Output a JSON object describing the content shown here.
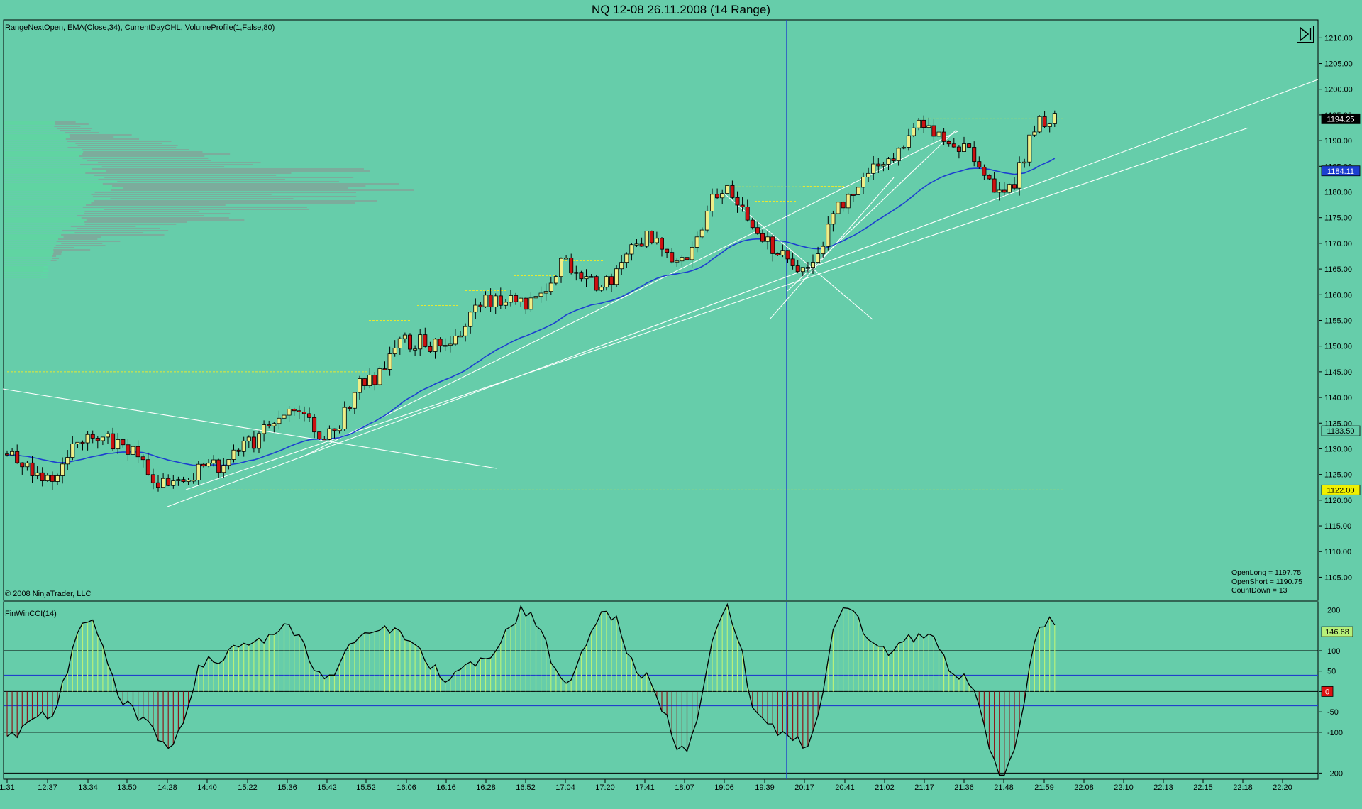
{
  "window": {
    "title": "NQ 12-08  26.11.2008 (14 Range)",
    "indicators": "RangeNextOpen, EMA(Close,34), CurrentDayOHL, VolumeProfile(1,False,80)",
    "copyright": "© 2008 NinjaTrader, LLC",
    "nav_icon": "skip-to-end-icon"
  },
  "stats": {
    "open_long": "OpenLong = 1197.75",
    "open_short": "OpenShort = 1190.75",
    "countdown": "CountDown = 13"
  },
  "colors": {
    "background": "#66CDAA",
    "bull_candle": "#EEEE88",
    "bear_candle": "#CC1111",
    "ema": "#1C3FD0",
    "trendline": "#FFFFFF",
    "level_line": "#E8E830",
    "volume_profile": "#8F8F8F",
    "cci_line": "#000000",
    "cci_pos_hist": "#B7F07A",
    "cci_neg_hist": "#8B1A1A",
    "cursor_line": "#2040CC"
  },
  "chart_data": [
    {
      "type": "candlestick",
      "instrument": "NQ 12-08",
      "ylim": [
        1100.5,
        1213.5
      ],
      "y_ticks": [
        1105,
        1110,
        1115,
        1120,
        1125,
        1130,
        1135,
        1140,
        1145,
        1150,
        1155,
        1160,
        1165,
        1170,
        1175,
        1180,
        1185,
        1190,
        1195,
        1200,
        1205,
        1210
      ],
      "y_tick_labels": [
        "1105.00",
        "1110.00",
        "1115.00",
        "1120.00",
        "1125.00",
        "1130.00",
        "1135.00",
        "1140.00",
        "1145.00",
        "1150.00",
        "1155.00",
        "1160.00",
        "1165.00",
        "1170.00",
        "1175.00",
        "1180.00",
        "1185.00",
        "1190.00",
        "1195.00",
        "1200.00",
        "1205.00",
        "1210.00"
      ],
      "x_tick_labels": [
        "1:31",
        "12:37",
        "13:34",
        "13:50",
        "14:28",
        "14:40",
        "15:22",
        "15:36",
        "15:42",
        "15:52",
        "16:06",
        "16:16",
        "16:28",
        "16:52",
        "17:04",
        "17:20",
        "17:41",
        "18:07",
        "19:06",
        "19:39",
        "20:17",
        "20:41",
        "21:02",
        "21:17",
        "21:36",
        "21:48",
        "21:59",
        "22:08",
        "22:10",
        "22:13",
        "22:15",
        "22:18",
        "22:20"
      ],
      "key_points": [
        {
          "time": "1:31",
          "price": 1129
        },
        {
          "time": "12:37",
          "price": 1124
        },
        {
          "time": "13:34",
          "price": 1133
        },
        {
          "time": "13:50",
          "price": 1130
        },
        {
          "time": "14:28",
          "price": 1123
        },
        {
          "time": "14:40",
          "price": 1126
        },
        {
          "time": "15:22",
          "price": 1131
        },
        {
          "time": "15:36",
          "price": 1138
        },
        {
          "time": "15:42",
          "price": 1133
        },
        {
          "time": "15:52",
          "price": 1143
        },
        {
          "time": "16:06",
          "price": 1151
        },
        {
          "time": "16:16",
          "price": 1150
        },
        {
          "time": "16:28",
          "price": 1159
        },
        {
          "time": "16:52",
          "price": 1158
        },
        {
          "time": "17:04",
          "price": 1166
        },
        {
          "time": "17:20",
          "price": 1162
        },
        {
          "time": "17:41",
          "price": 1171
        },
        {
          "time": "18:07",
          "price": 1167
        },
        {
          "time": "19:06",
          "price": 1181
        },
        {
          "time": "19:39",
          "price": 1170
        },
        {
          "time": "20:17",
          "price": 1164
        },
        {
          "time": "20:41",
          "price": 1178
        },
        {
          "time": "21:02",
          "price": 1186
        },
        {
          "time": "21:17",
          "price": 1193
        },
        {
          "time": "21:36",
          "price": 1188
        },
        {
          "time": "21:48",
          "price": 1180
        },
        {
          "time": "21:59",
          "price": 1194
        }
      ],
      "last_price": 1194.25,
      "price_markers": [
        {
          "label": "1194.25",
          "value": 1194.25,
          "bg": "#000000",
          "fg": "#FFFFFF"
        },
        {
          "label": "1184.11",
          "value": 1184.11,
          "bg": "#1C3FD0",
          "fg": "#FFFFFF"
        },
        {
          "label": "1133.50",
          "value": 1133.5,
          "bg": "#66CDAA",
          "fg": "#000000"
        },
        {
          "label": "1122.00",
          "value": 1122.0,
          "bg": "#F0F000",
          "fg": "#000000"
        }
      ],
      "levels": [
        {
          "name": "current-day-low",
          "value": 1122.0
        },
        {
          "name": "current-day-high",
          "value": 1194.25
        }
      ],
      "series": [
        {
          "name": "EMA(Close,34)"
        }
      ]
    },
    {
      "type": "line",
      "name": "FinWinCCI(14)",
      "ylim": [
        -215,
        220
      ],
      "y_ticks": [
        200,
        100,
        50,
        0,
        -50,
        -100,
        -200
      ],
      "y_tick_labels": [
        "200",
        "100",
        "50",
        "0",
        "-50",
        "-100",
        "-200"
      ],
      "hlines": [
        200,
        100,
        0,
        -100,
        -200
      ],
      "blue_hlines": [
        40,
        -35
      ],
      "key_points": [
        {
          "time": "1:31",
          "value": -120
        },
        {
          "time": "12:37",
          "value": -60
        },
        {
          "time": "13:34",
          "value": 180
        },
        {
          "time": "13:50",
          "value": -40
        },
        {
          "time": "14:28",
          "value": -130
        },
        {
          "time": "14:40",
          "value": 70
        },
        {
          "time": "15:22",
          "value": 120
        },
        {
          "time": "15:36",
          "value": 150
        },
        {
          "time": "15:42",
          "value": 30
        },
        {
          "time": "15:52",
          "value": 150
        },
        {
          "time": "16:06",
          "value": 140
        },
        {
          "time": "16:16",
          "value": 30
        },
        {
          "time": "16:28",
          "value": 80
        },
        {
          "time": "16:52",
          "value": 200
        },
        {
          "time": "17:04",
          "value": 30
        },
        {
          "time": "17:20",
          "value": 200
        },
        {
          "time": "17:41",
          "value": 30
        },
        {
          "time": "18:07",
          "value": -140
        },
        {
          "time": "19:06",
          "value": 200
        },
        {
          "time": "19:39",
          "value": -80
        },
        {
          "time": "20:17",
          "value": -130
        },
        {
          "time": "20:41",
          "value": 200
        },
        {
          "time": "21:02",
          "value": 100
        },
        {
          "time": "21:17",
          "value": 140
        },
        {
          "time": "21:36",
          "value": 30
        },
        {
          "time": "21:48",
          "value": -200
        },
        {
          "time": "21:59",
          "value": 170
        }
      ],
      "last_value": 146.68,
      "value_markers": [
        {
          "label": "146.68",
          "value": 146.68,
          "bg": "#B7F07A",
          "fg": "#000000"
        },
        {
          "label": "0",
          "value": 0,
          "bg": "#DD1111",
          "fg": "#FFFFFF"
        }
      ]
    }
  ]
}
